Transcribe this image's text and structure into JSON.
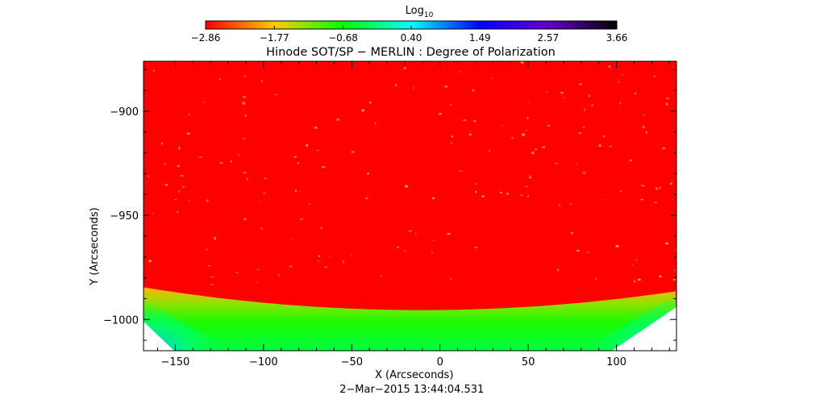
{
  "chart_data": {
    "type": "heatmap",
    "title": "Hinode SOT/SP − MERLIN : Degree of Polarization",
    "xlabel": "X (Arcseconds)",
    "ylabel": "Y (Arcseconds)",
    "xlim": [
      -168,
      134
    ],
    "ylim": [
      -1015,
      -876
    ],
    "x_ticks": [
      -150,
      -100,
      -50,
      0,
      50,
      100
    ],
    "x_tick_labels": [
      "−150",
      "−100",
      "−50",
      "0",
      "50",
      "100"
    ],
    "y_ticks": [
      -1000,
      -950,
      -900
    ],
    "y_tick_labels": [
      "−1000",
      "−950",
      "−900"
    ],
    "grid": false,
    "timestamp": "2−Mar−2015 13:44:04.531",
    "colorbar": {
      "label_base": "Log",
      "label_sub": "10",
      "position": "top",
      "range": [
        -2.86,
        3.66
      ],
      "tick_values": [
        -2.86,
        -1.77,
        -0.68,
        0.4,
        1.49,
        2.57,
        3.66
      ],
      "tick_labels": [
        "−2.86",
        "−1.77",
        "−0.68",
        "0.40",
        "1.49",
        "2.57",
        "3.66"
      ],
      "colors": [
        "#ff0000",
        "#ffcc00",
        "#00ff00",
        "#00ffff",
        "#0000ff",
        "#6600cc",
        "#000000"
      ]
    },
    "field": {
      "background_value": -2.86,
      "limb_band_value": -1.9,
      "limb_bottom_value": -0.4,
      "corner_value": 0.3,
      "off_disk": "white"
    }
  }
}
